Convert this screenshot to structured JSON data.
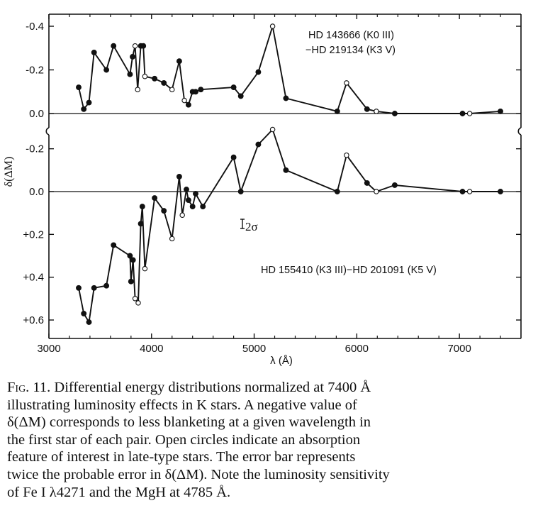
{
  "chart_data": [
    {
      "type": "line",
      "panel": "upper",
      "annotation": [
        "HD 143666 (K0 III)",
        "−HD 219134 (K3 V)"
      ],
      "ylim": [
        0.0,
        -0.4
      ],
      "y_ticks": [
        "-0.4",
        "-0.2",
        "0.0"
      ],
      "y_tick_values": [
        -0.4,
        -0.2,
        0.0
      ],
      "series": [
        {
          "x": [
            3290,
            3340,
            3390,
            3440,
            3560,
            3630,
            3790,
            3815,
            3840,
            3865,
            3895,
            3920,
            3935,
            4030,
            4120,
            4200,
            4270,
            4320,
            4360,
            4400,
            4430,
            4480,
            4800,
            4870,
            5040,
            5180,
            5310,
            5810,
            5900,
            6100,
            6190,
            6370,
            7030,
            7100,
            7400
          ],
          "y": [
            -0.12,
            -0.02,
            -0.05,
            -0.28,
            -0.2,
            -0.31,
            -0.18,
            -0.26,
            -0.31,
            -0.11,
            -0.31,
            -0.31,
            -0.17,
            -0.16,
            -0.14,
            -0.11,
            -0.24,
            -0.06,
            -0.04,
            -0.1,
            -0.1,
            -0.11,
            -0.12,
            -0.08,
            -0.19,
            -0.4,
            -0.07,
            -0.01,
            -0.14,
            -0.02,
            -0.01,
            0.0,
            0.0,
            0.0,
            -0.01
          ],
          "open": [
            false,
            false,
            false,
            false,
            false,
            false,
            false,
            false,
            true,
            true,
            false,
            false,
            true,
            false,
            false,
            true,
            false,
            true,
            false,
            false,
            false,
            false,
            false,
            false,
            false,
            true,
            false,
            false,
            true,
            false,
            true,
            false,
            false,
            true,
            false
          ]
        }
      ]
    },
    {
      "type": "line",
      "panel": "lower",
      "annotation": [
        "HD 155410 (K3 III)−HD 201091 (K5 V)"
      ],
      "error_bar_label": "2σ",
      "ylim": [
        -0.2,
        0.6
      ],
      "y_ticks": [
        "-0.2",
        "0.0",
        "+0.2",
        "+0.4",
        "+0.6"
      ],
      "y_tick_values": [
        -0.2,
        0.0,
        0.2,
        0.4,
        0.6
      ],
      "series": [
        {
          "x": [
            3290,
            3340,
            3390,
            3440,
            3560,
            3630,
            3790,
            3800,
            3820,
            3840,
            3870,
            3895,
            3910,
            3935,
            4030,
            4120,
            4200,
            4270,
            4300,
            4340,
            4360,
            4400,
            4430,
            4500,
            4800,
            4870,
            5040,
            5180,
            5310,
            5810,
            5900,
            6100,
            6190,
            6370,
            7030,
            7100,
            7400
          ],
          "y": [
            0.45,
            0.57,
            0.61,
            0.45,
            0.44,
            0.25,
            0.3,
            0.42,
            0.32,
            0.5,
            0.52,
            0.15,
            0.07,
            0.36,
            0.03,
            0.09,
            0.22,
            -0.07,
            0.11,
            -0.01,
            0.04,
            0.07,
            0.01,
            0.07,
            -0.16,
            0.0,
            -0.22,
            -0.29,
            -0.1,
            0.0,
            -0.17,
            -0.04,
            0.0,
            -0.03,
            0.0,
            0.0,
            0.0
          ],
          "open": [
            false,
            false,
            false,
            false,
            false,
            false,
            false,
            false,
            false,
            true,
            true,
            false,
            false,
            true,
            false,
            false,
            true,
            false,
            true,
            false,
            false,
            false,
            false,
            false,
            false,
            false,
            false,
            true,
            false,
            false,
            true,
            false,
            true,
            false,
            false,
            true,
            false
          ]
        }
      ]
    }
  ],
  "axes": {
    "xlabel": "λ (Å)",
    "ylabel": "δ(ΔM)",
    "xlim": [
      3000,
      7600
    ],
    "x_ticks": [
      "3000",
      "4000",
      "5000",
      "6000",
      "7000"
    ],
    "x_tick_values": [
      3000,
      4000,
      5000,
      6000,
      7000
    ]
  },
  "caption": {
    "lead": "Fig. 11.",
    "lines": [
      " Differential energy distributions normalized at 7400 Å",
      "illustrating luminosity effects in K stars. A negative value of",
      "δ(ΔM) corresponds to less blanketing at a given wavelength in",
      "the first star of each pair. Open circles indicate an absorption",
      "feature of interest in late-type stars. The error bar represents",
      "twice the probable error in δ(ΔM). Note the luminosity sensitivity",
      "of Fe I λ4271 and the MgH at 4785 Å."
    ]
  }
}
